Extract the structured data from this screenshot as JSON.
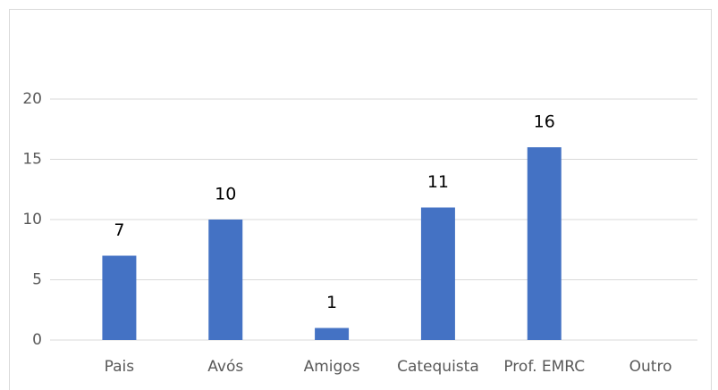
{
  "chart_data": {
    "type": "bar",
    "categories": [
      "Pais",
      "Avós",
      "Amigos",
      "Catequista",
      "Prof. EMRC",
      "Outro"
    ],
    "values": [
      7,
      10,
      1,
      11,
      16,
      null
    ],
    "color": "#4472c4",
    "ylim": [
      0,
      20
    ],
    "yticks": [
      0,
      5,
      10,
      15,
      20
    ],
    "grid": true
  }
}
